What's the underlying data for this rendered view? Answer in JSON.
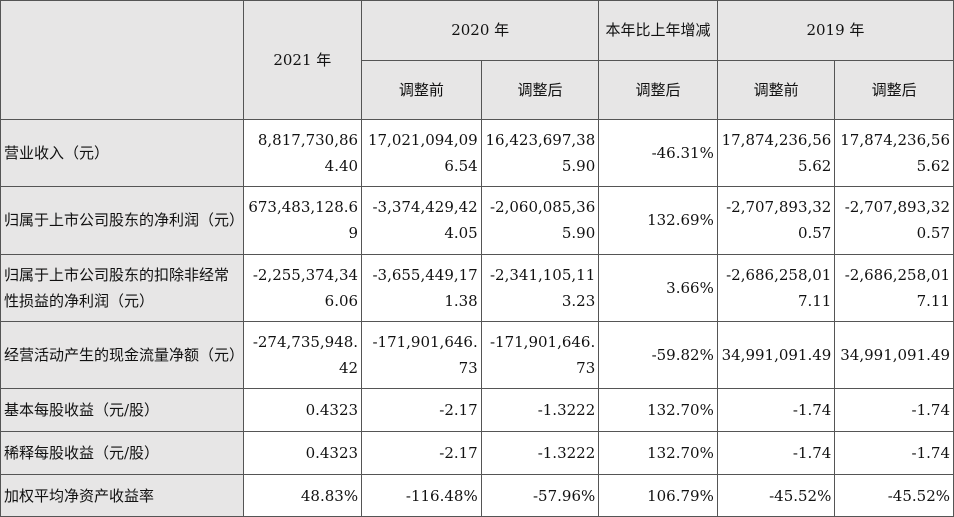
{
  "header": {
    "y2021": "2021 年",
    "y2020": "2020 年",
    "change": "本年比上年增减",
    "y2019": "2019 年",
    "before": "调整前",
    "after": "调整后",
    "after_change": "调整后",
    "before_2019": "调整前",
    "after_2019": "调整后"
  },
  "rows": [
    {
      "label": "营业收入（元）",
      "v2021": "8,817,730,864.40",
      "v2020_before": "17,021,094,096.54",
      "v2020_after": "16,423,697,385.90",
      "change": "-46.31%",
      "v2019_before": "17,874,236,565.62",
      "v2019_after": "17,874,236,565.62"
    },
    {
      "label": "归属于上市公司股东的净利润（元）",
      "v2021": "673,483,128.69",
      "v2020_before": "-3,374,429,424.05",
      "v2020_after": "-2,060,085,365.90",
      "change": "132.69%",
      "v2019_before": "-2,707,893,320.57",
      "v2019_after": "-2,707,893,320.57"
    },
    {
      "label": "归属于上市公司股东的扣除非经常性损益的净利润（元）",
      "v2021": "-2,255,374,346.06",
      "v2020_before": "-3,655,449,171.38",
      "v2020_after": "-2,341,105,113.23",
      "change": "3.66%",
      "v2019_before": "-2,686,258,017.11",
      "v2019_after": "-2,686,258,017.11"
    },
    {
      "label": "经营活动产生的现金流量净额（元）",
      "v2021": "-274,735,948.42",
      "v2020_before": "-171,901,646.73",
      "v2020_after": "-171,901,646.73",
      "change": "-59.82%",
      "v2019_before": "34,991,091.49",
      "v2019_after": "34,991,091.49"
    },
    {
      "label": "基本每股收益（元/股）",
      "v2021": "0.4323",
      "v2020_before": "-2.17",
      "v2020_after": "-1.3222",
      "change": "132.70%",
      "v2019_before": "-1.74",
      "v2019_after": "-1.74"
    },
    {
      "label": "稀释每股收益（元/股）",
      "v2021": "0.4323",
      "v2020_before": "-2.17",
      "v2020_after": "-1.3222",
      "change": "132.70%",
      "v2019_before": "-1.74",
      "v2019_after": "-1.74"
    },
    {
      "label": "加权平均净资产收益率",
      "v2021": "48.83%",
      "v2020_before": "-116.48%",
      "v2020_after": "-57.96%",
      "change": "106.79%",
      "v2019_before": "-45.52%",
      "v2019_after": "-45.52%"
    }
  ]
}
